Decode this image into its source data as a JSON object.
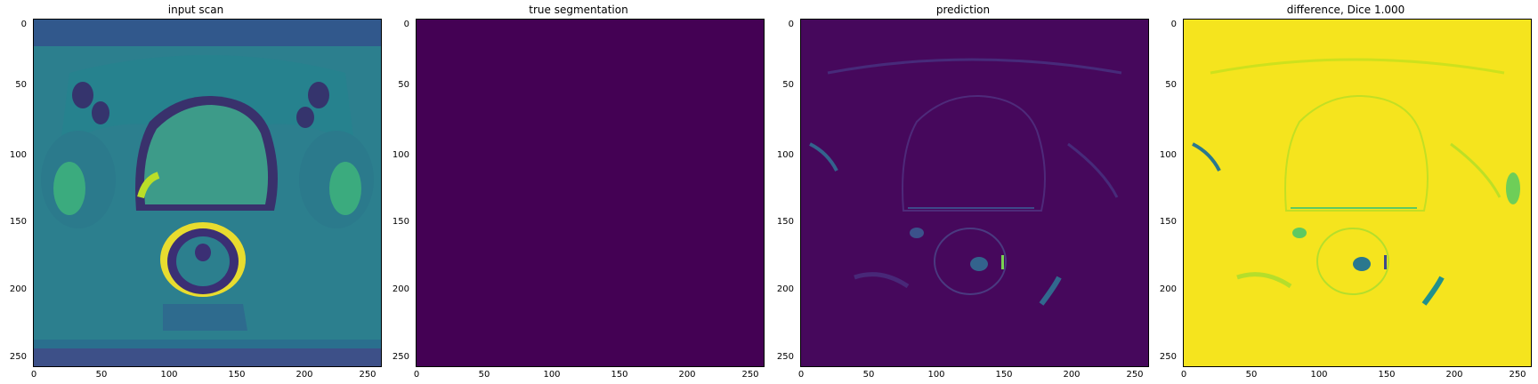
{
  "panels": [
    {
      "title": "input scan",
      "colormap": "viridis",
      "content": "axial pelvic MRI scan"
    },
    {
      "title": "true segmentation",
      "colormap": "viridis",
      "content": "uniform dark purple field",
      "fill": "#440154"
    },
    {
      "title": "prediction",
      "colormap": "viridis",
      "content": "mostly dark purple with faint structure outlines"
    },
    {
      "title": "difference, Dice 1.000",
      "colormap": "viridis",
      "content": "mostly yellow with faint structure outlines"
    }
  ],
  "axes": {
    "y_ticks": [
      "0",
      "50",
      "100",
      "150",
      "200",
      "250"
    ],
    "x_ticks": [
      "0",
      "50",
      "100",
      "150",
      "200",
      "250"
    ],
    "range": [
      0,
      256
    ]
  },
  "colors": {
    "viridis_dark": "#440154",
    "viridis_mid": "#21908d",
    "viridis_yellow": "#fde725"
  }
}
